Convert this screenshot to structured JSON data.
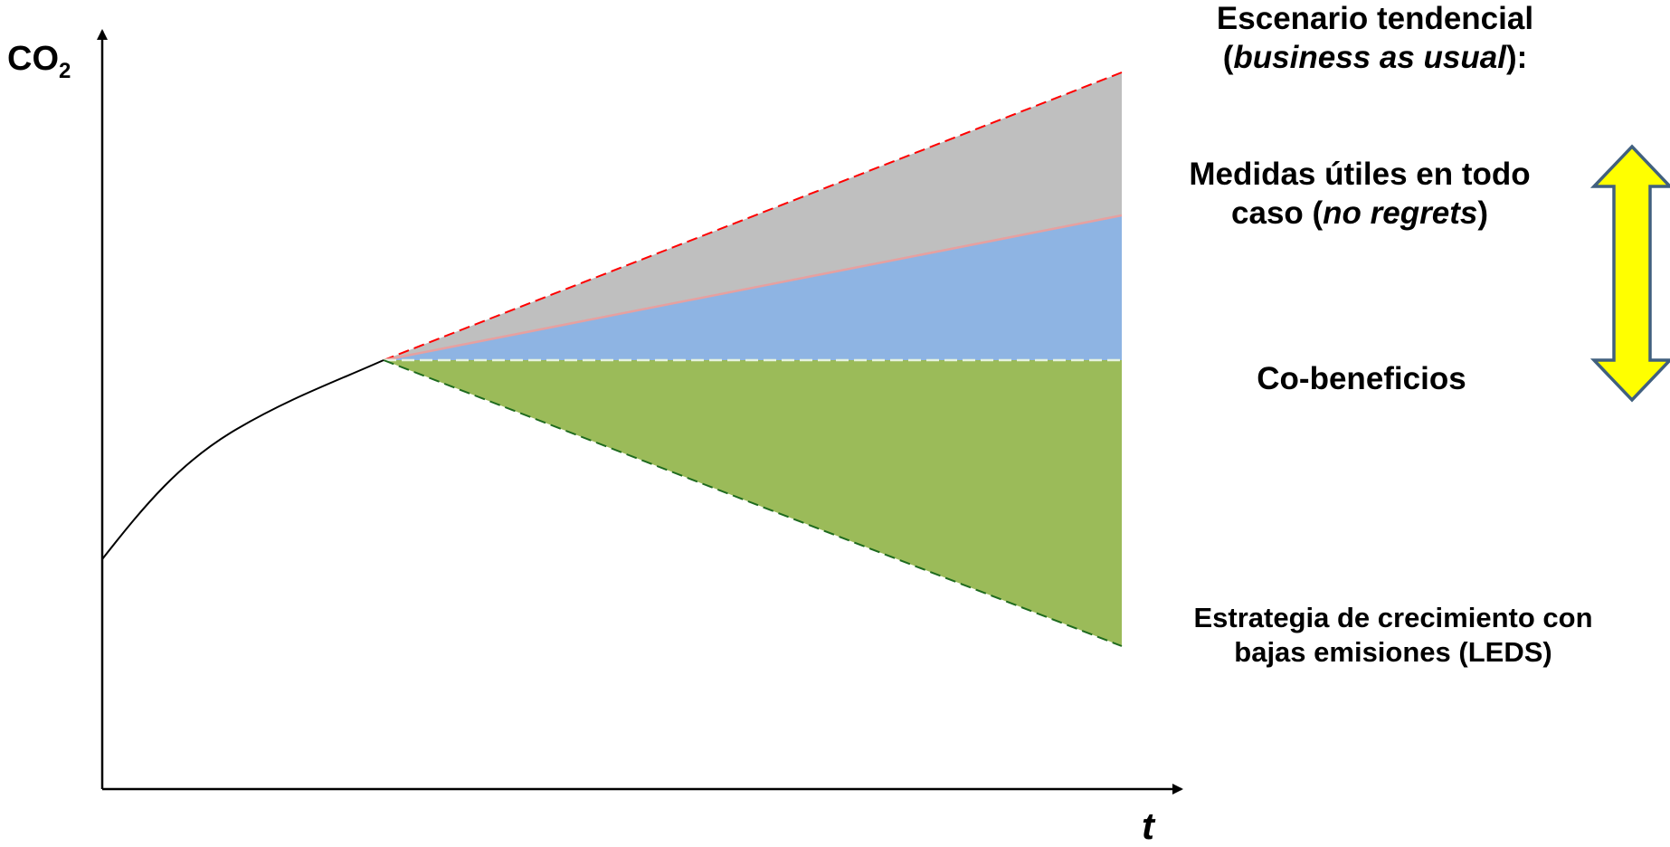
{
  "axes": {
    "y_label_main": "CO",
    "y_label_sub": "2",
    "x_label": "t"
  },
  "labels": {
    "bau_line1": "Escenario tendencial",
    "bau_line2_prefix": "(",
    "bau_line2_italic": "business as usual",
    "bau_line2_suffix": "):",
    "noregrets_line1": "Medidas útiles en todo",
    "noregrets_line2_prefix": "caso (",
    "noregrets_line2_italic": "no regrets",
    "noregrets_line2_suffix": ")",
    "cobenefits": "Co-beneficios",
    "leds_line1": "Estrategia de crecimiento con",
    "leds_line2": "bajas emisiones (LEDS)"
  },
  "colors": {
    "axis": "#000000",
    "curve": "#000000",
    "grey_band": "#bfbfbf",
    "blue_band": "#8eb4e3",
    "green_band": "#9bbb59",
    "bau_dashed_line": "#ff0000",
    "noregrets_line": "#e6a0a0",
    "cobenefits_dashed_line": "#e6f2e0",
    "leds_dashed_line": "#1e6b1e",
    "arrow_fill": "#ffff00",
    "arrow_stroke": "#41607f"
  },
  "icons": {
    "double_arrow": "vertical-double-arrow-icon"
  }
}
